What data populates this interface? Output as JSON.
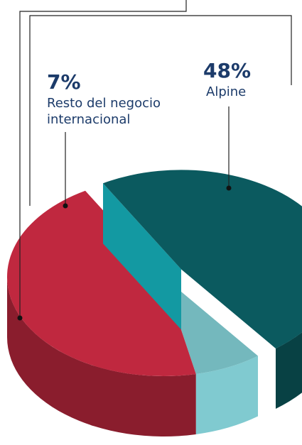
{
  "chart_data": {
    "type": "pie3d",
    "categories": [
      "Alpine",
      "Resto del negocio internacional",
      null
    ],
    "values": [
      48,
      7,
      45
    ],
    "value_labels": [
      "48%",
      "7%",
      null
    ],
    "colors": [
      "#0b5a5f",
      "#74b8bd",
      "#c0283f"
    ]
  }
}
